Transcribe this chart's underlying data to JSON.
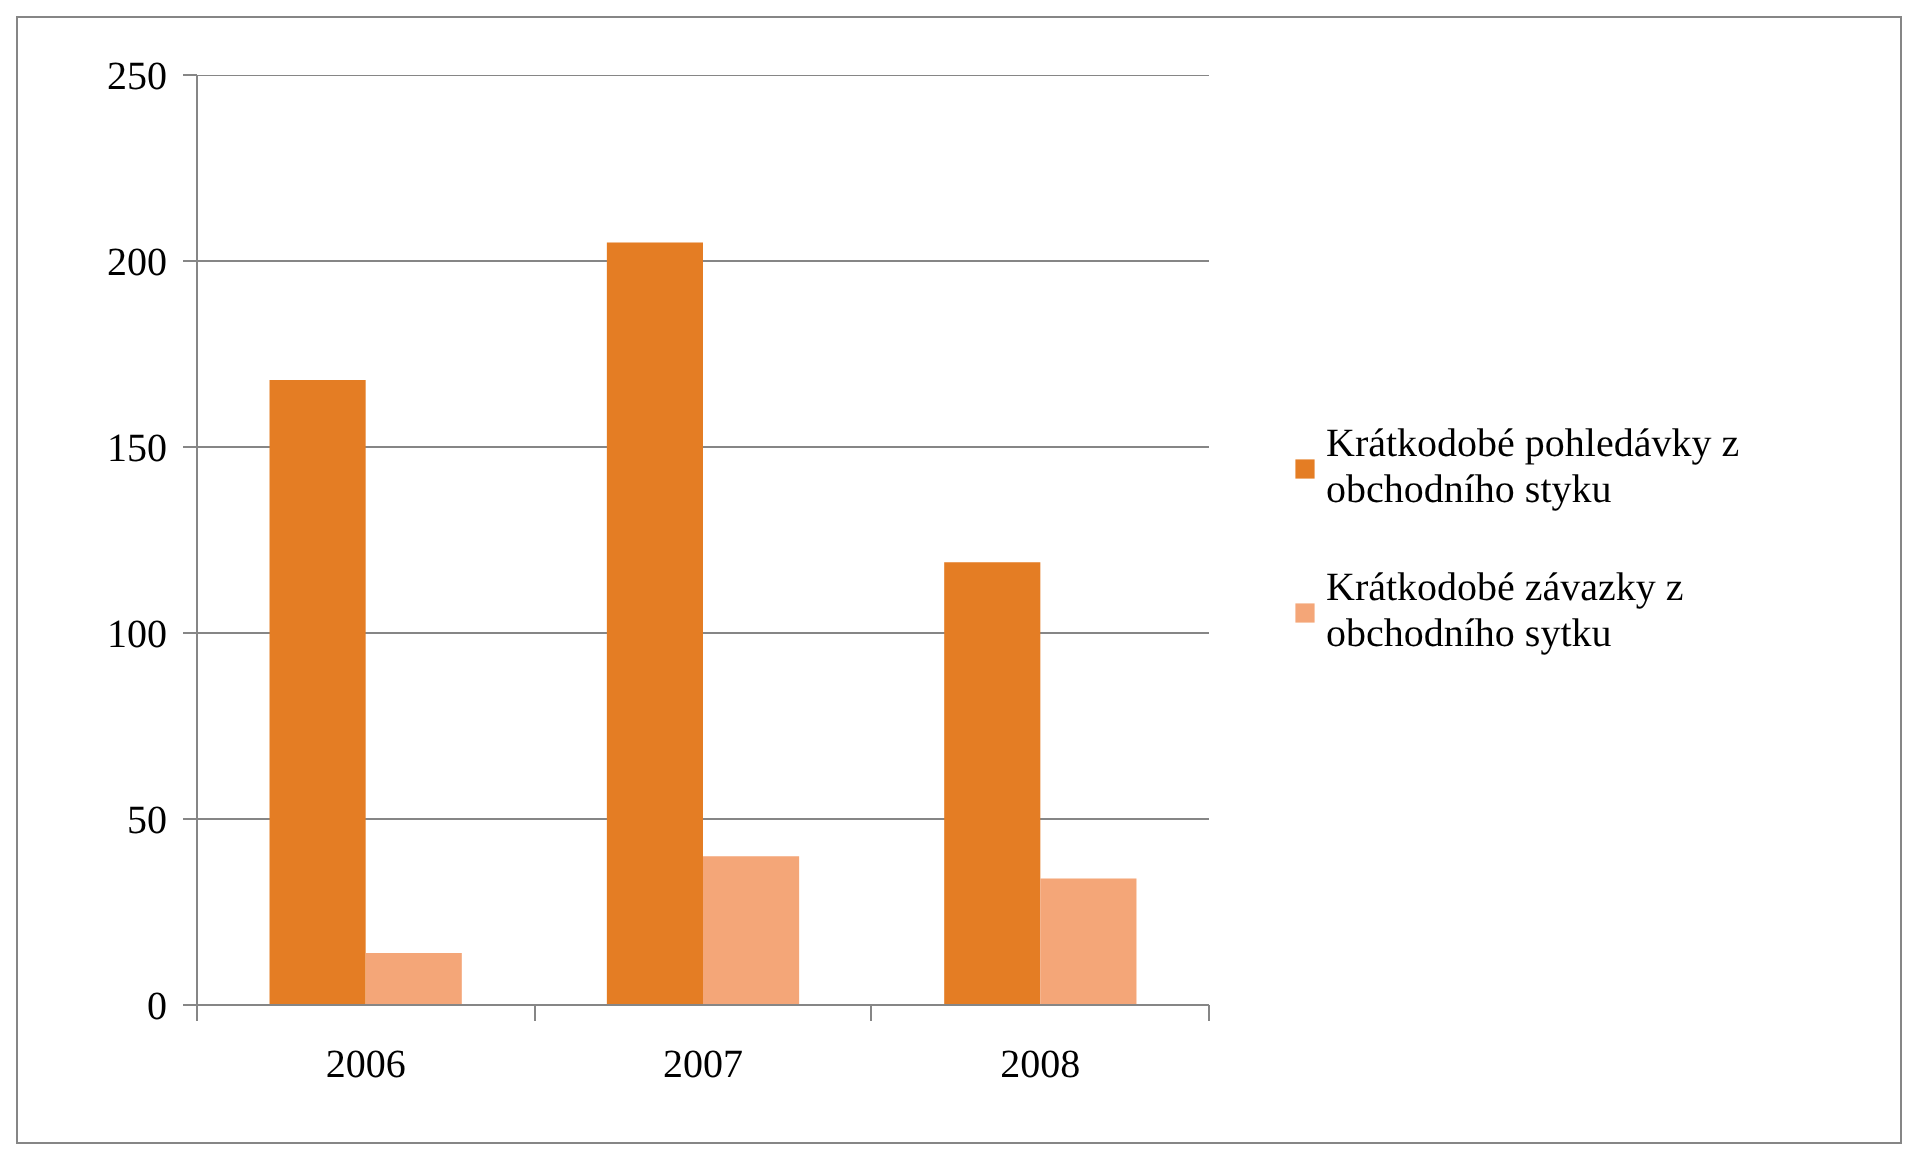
{
  "chart_data": {
    "type": "bar",
    "categories": [
      "2006",
      "2007",
      "2008"
    ],
    "series": [
      {
        "name": "Krátkodobé pohledávky z obchodního styku",
        "color": "#e47d24",
        "values": [
          168,
          205,
          119
        ]
      },
      {
        "name": "Krátkodobé závazky z obchodního sytku",
        "color": "#f4a678",
        "values": [
          14,
          40,
          34
        ]
      }
    ],
    "ylim": [
      0,
      250
    ],
    "yticks": [
      0,
      50,
      100,
      150,
      200,
      250
    ],
    "grid": "y",
    "legend": "right"
  }
}
